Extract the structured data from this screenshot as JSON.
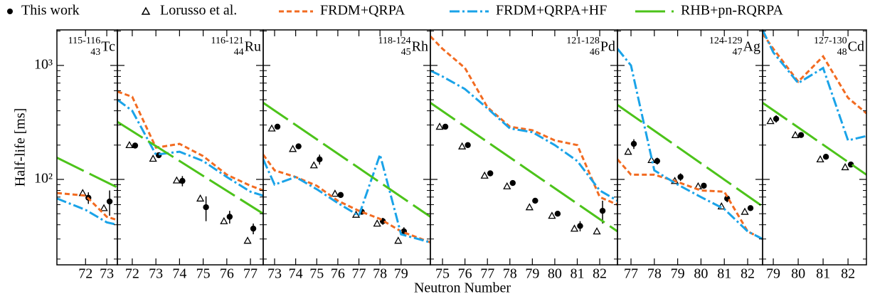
{
  "chart_data": {
    "type": "line",
    "y_label": "Half-life [ms]",
    "x_label": "Neutron Number",
    "log_y": true,
    "ylim": [
      17.8,
      2050
    ],
    "yticks": [
      {
        "value": 100,
        "label": "10²"
      },
      {
        "value": 1000,
        "label": "10³"
      }
    ],
    "minor_yticks": [
      20,
      30,
      40,
      50,
      60,
      70,
      80,
      90,
      200,
      300,
      400,
      500,
      600,
      700,
      800,
      900,
      2000
    ],
    "legend": [
      {
        "name": "This work",
        "color": "#000000",
        "style": "dots"
      },
      {
        "name": "Lorusso et al.",
        "color": "#000000",
        "style": "triangles"
      },
      {
        "name": "FRDM+QRPA",
        "color": "#f26b21",
        "style": "dashed"
      },
      {
        "name": "FRDM+QRPA+HF",
        "color": "#1aa3e8",
        "style": "dashdot"
      },
      {
        "name": "RHB+pn-RQRPA",
        "color": "#4cc31a",
        "style": "longdash"
      }
    ],
    "panels": [
      {
        "label": {
          "mass": "115-116",
          "z": "43",
          "element": "Tc"
        },
        "xlim": [
          70.65,
          73.5
        ],
        "xticks": [
          72,
          73
        ],
        "series": [
          {
            "x": [
              72,
              73
            ],
            "values": [
              69,
              64
            ],
            "errors": [
              8,
              16
            ]
          },
          {
            "x": [
              72,
              73
            ],
            "values": [
              76,
              56
            ]
          },
          {
            "x": [
              70.65,
              72,
              73,
              73.5
            ],
            "values": [
              76,
              72,
              47,
              44
            ]
          },
          {
            "x": [
              70.65,
              72,
              73,
              73.5
            ],
            "values": [
              68,
              54,
              42,
              40
            ]
          },
          {
            "x": [
              70.65,
              73.5
            ],
            "values": [
              155,
              85
            ]
          }
        ]
      },
      {
        "label": {
          "mass": "116-121",
          "z": "44",
          "element": "Ru"
        },
        "xlim": [
          71.37,
          77.54
        ],
        "xticks": [
          72,
          73,
          74,
          75,
          76,
          77
        ],
        "series": [
          {
            "x": [
              72,
              73,
              74,
              75,
              76,
              77
            ],
            "values": [
              198,
              163,
              97,
              57,
              47,
              37
            ],
            "errors": [
              8,
              8,
              10,
              14,
              6,
              4
            ]
          },
          {
            "x": [
              72,
              73,
              74,
              75,
              76,
              77
            ],
            "values": [
              200,
              152,
              98,
              68,
              43,
              29
            ]
          },
          {
            "x": [
              71.37,
              72,
              73,
              74,
              75,
              76,
              77,
              77.54
            ],
            "values": [
              590,
              530,
              190,
              205,
              160,
              110,
              88,
              80
            ]
          },
          {
            "x": [
              71.37,
              72,
              73,
              74,
              75,
              76,
              77,
              77.54
            ],
            "values": [
              500,
              400,
              165,
              175,
              145,
              105,
              78,
              72
            ]
          },
          {
            "x": [
              71.37,
              77.54
            ],
            "values": [
              320,
              50
            ]
          }
        ]
      },
      {
        "label": {
          "mass": "118-124",
          "z": "45",
          "element": "Rh"
        },
        "xlim": [
          72.46,
          80.39
        ],
        "xticks": [
          73,
          74,
          75,
          76,
          77,
          78,
          79
        ],
        "series": [
          {
            "x": [
              73,
              74,
              75,
              76,
              77,
              78,
              79
            ],
            "values": [
              290,
              195,
              150,
              73,
              52,
              43,
              35
            ],
            "errors": [
              10,
              10,
              15,
              3,
              3,
              3,
              3
            ]
          },
          {
            "x": [
              73,
              74,
              75,
              76,
              77,
              78,
              79
            ],
            "values": [
              280,
              185,
              133,
              75,
              49,
              41,
              29
            ]
          },
          {
            "x": [
              72.46,
              73,
              74,
              75,
              76,
              77,
              78,
              79,
              80.39
            ],
            "values": [
              165,
              120,
              105,
              88,
              65,
              53,
              45,
              35,
              28
            ]
          },
          {
            "x": [
              72.46,
              73,
              74,
              75,
              76,
              77,
              78,
              79,
              80.39
            ],
            "values": [
              150,
              90,
              105,
              82,
              62,
              48,
              165,
              33,
              28
            ]
          },
          {
            "x": [
              72.46,
              80.39
            ],
            "values": [
              470,
              47
            ]
          }
        ]
      },
      {
        "label": {
          "mass": "121-128",
          "z": "46",
          "element": "Pd"
        },
        "xlim": [
          74.46,
          82.79
        ],
        "xticks": [
          75,
          76,
          77,
          78,
          79,
          80,
          81,
          82
        ],
        "series": [
          {
            "x": [
              75,
              76,
              77,
              78,
              79,
              80,
              81,
              82
            ],
            "values": [
              290,
              200,
              113,
              93,
              65,
              50,
              39,
              53
            ],
            "errors": [
              10,
              8,
              4,
              4,
              3,
              2,
              4,
              12
            ]
          },
          {
            "x": [
              75,
              76,
              77,
              78,
              79,
              80,
              81,
              82
            ],
            "values": [
              290,
              195,
              108,
              87,
              57,
              48,
              37,
              35
            ]
          },
          {
            "x": [
              74.46,
              75,
              76,
              77,
              78,
              79,
              80,
              81,
              82,
              82.79
            ],
            "values": [
              1800,
              1400,
              950,
              430,
              290,
              270,
              220,
              200,
              70,
              60
            ]
          },
          {
            "x": [
              74.46,
              75,
              76,
              77,
              78,
              79,
              80,
              81,
              82,
              82.79
            ],
            "values": [
              900,
              800,
              620,
              420,
              280,
              260,
              200,
              145,
              80,
              65
            ]
          },
          {
            "x": [
              74.46,
              82.79
            ],
            "values": [
              470,
              35
            ]
          }
        ]
      },
      {
        "label": {
          "mass": "124-129",
          "z": "47",
          "element": "Ag"
        },
        "xlim": [
          76.42,
          82.64
        ],
        "xticks": [
          77,
          78,
          79,
          80,
          81,
          82
        ],
        "series": [
          {
            "x": [
              77,
              78,
              79,
              80,
              81,
              82
            ],
            "values": [
              205,
              145,
              105,
              88,
              68,
              56
            ],
            "errors": [
              20,
              10,
              8,
              3,
              5,
              3
            ]
          },
          {
            "x": [
              77,
              78,
              79,
              80,
              81,
              82
            ],
            "values": [
              175,
              148,
              97,
              87,
              58,
              52
            ]
          },
          {
            "x": [
              76.42,
              77,
              78,
              79,
              80,
              81,
              82,
              82.64
            ],
            "values": [
              150,
              110,
              110,
              95,
              80,
              78,
              35,
              30
            ]
          },
          {
            "x": [
              76.42,
              77,
              78,
              79,
              80,
              81,
              82,
              82.64
            ],
            "values": [
              1400,
              1000,
              120,
              90,
              70,
              55,
              35,
              30
            ]
          },
          {
            "x": [
              76.42,
              82.64
            ],
            "values": [
              450,
              58
            ]
          }
        ]
      },
      {
        "label": {
          "mass": "127-130",
          "z": "48",
          "element": "Cd"
        },
        "xlim": [
          78.57,
          82.74
        ],
        "xticks": [
          79,
          80,
          81,
          82
        ],
        "series": [
          {
            "x": [
              79,
              80,
              81,
              82
            ],
            "values": [
              340,
              245,
              158,
              135
            ],
            "errors": [
              25,
              8,
              5,
              5
            ]
          },
          {
            "x": [
              79,
              80,
              81,
              82
            ],
            "values": [
              325,
              245,
              150,
              128
            ]
          },
          {
            "x": [
              78.57,
              79,
              80,
              81,
              82,
              82.74
            ],
            "values": [
              1900,
              1400,
              720,
              1200,
              520,
              380
            ]
          },
          {
            "x": [
              78.57,
              79,
              80,
              81,
              82,
              82.74
            ],
            "values": [
              2050,
              1300,
              700,
              950,
              220,
              240
            ]
          },
          {
            "x": [
              78.57,
              82.74
            ],
            "values": [
              470,
              110
            ]
          }
        ]
      }
    ]
  }
}
